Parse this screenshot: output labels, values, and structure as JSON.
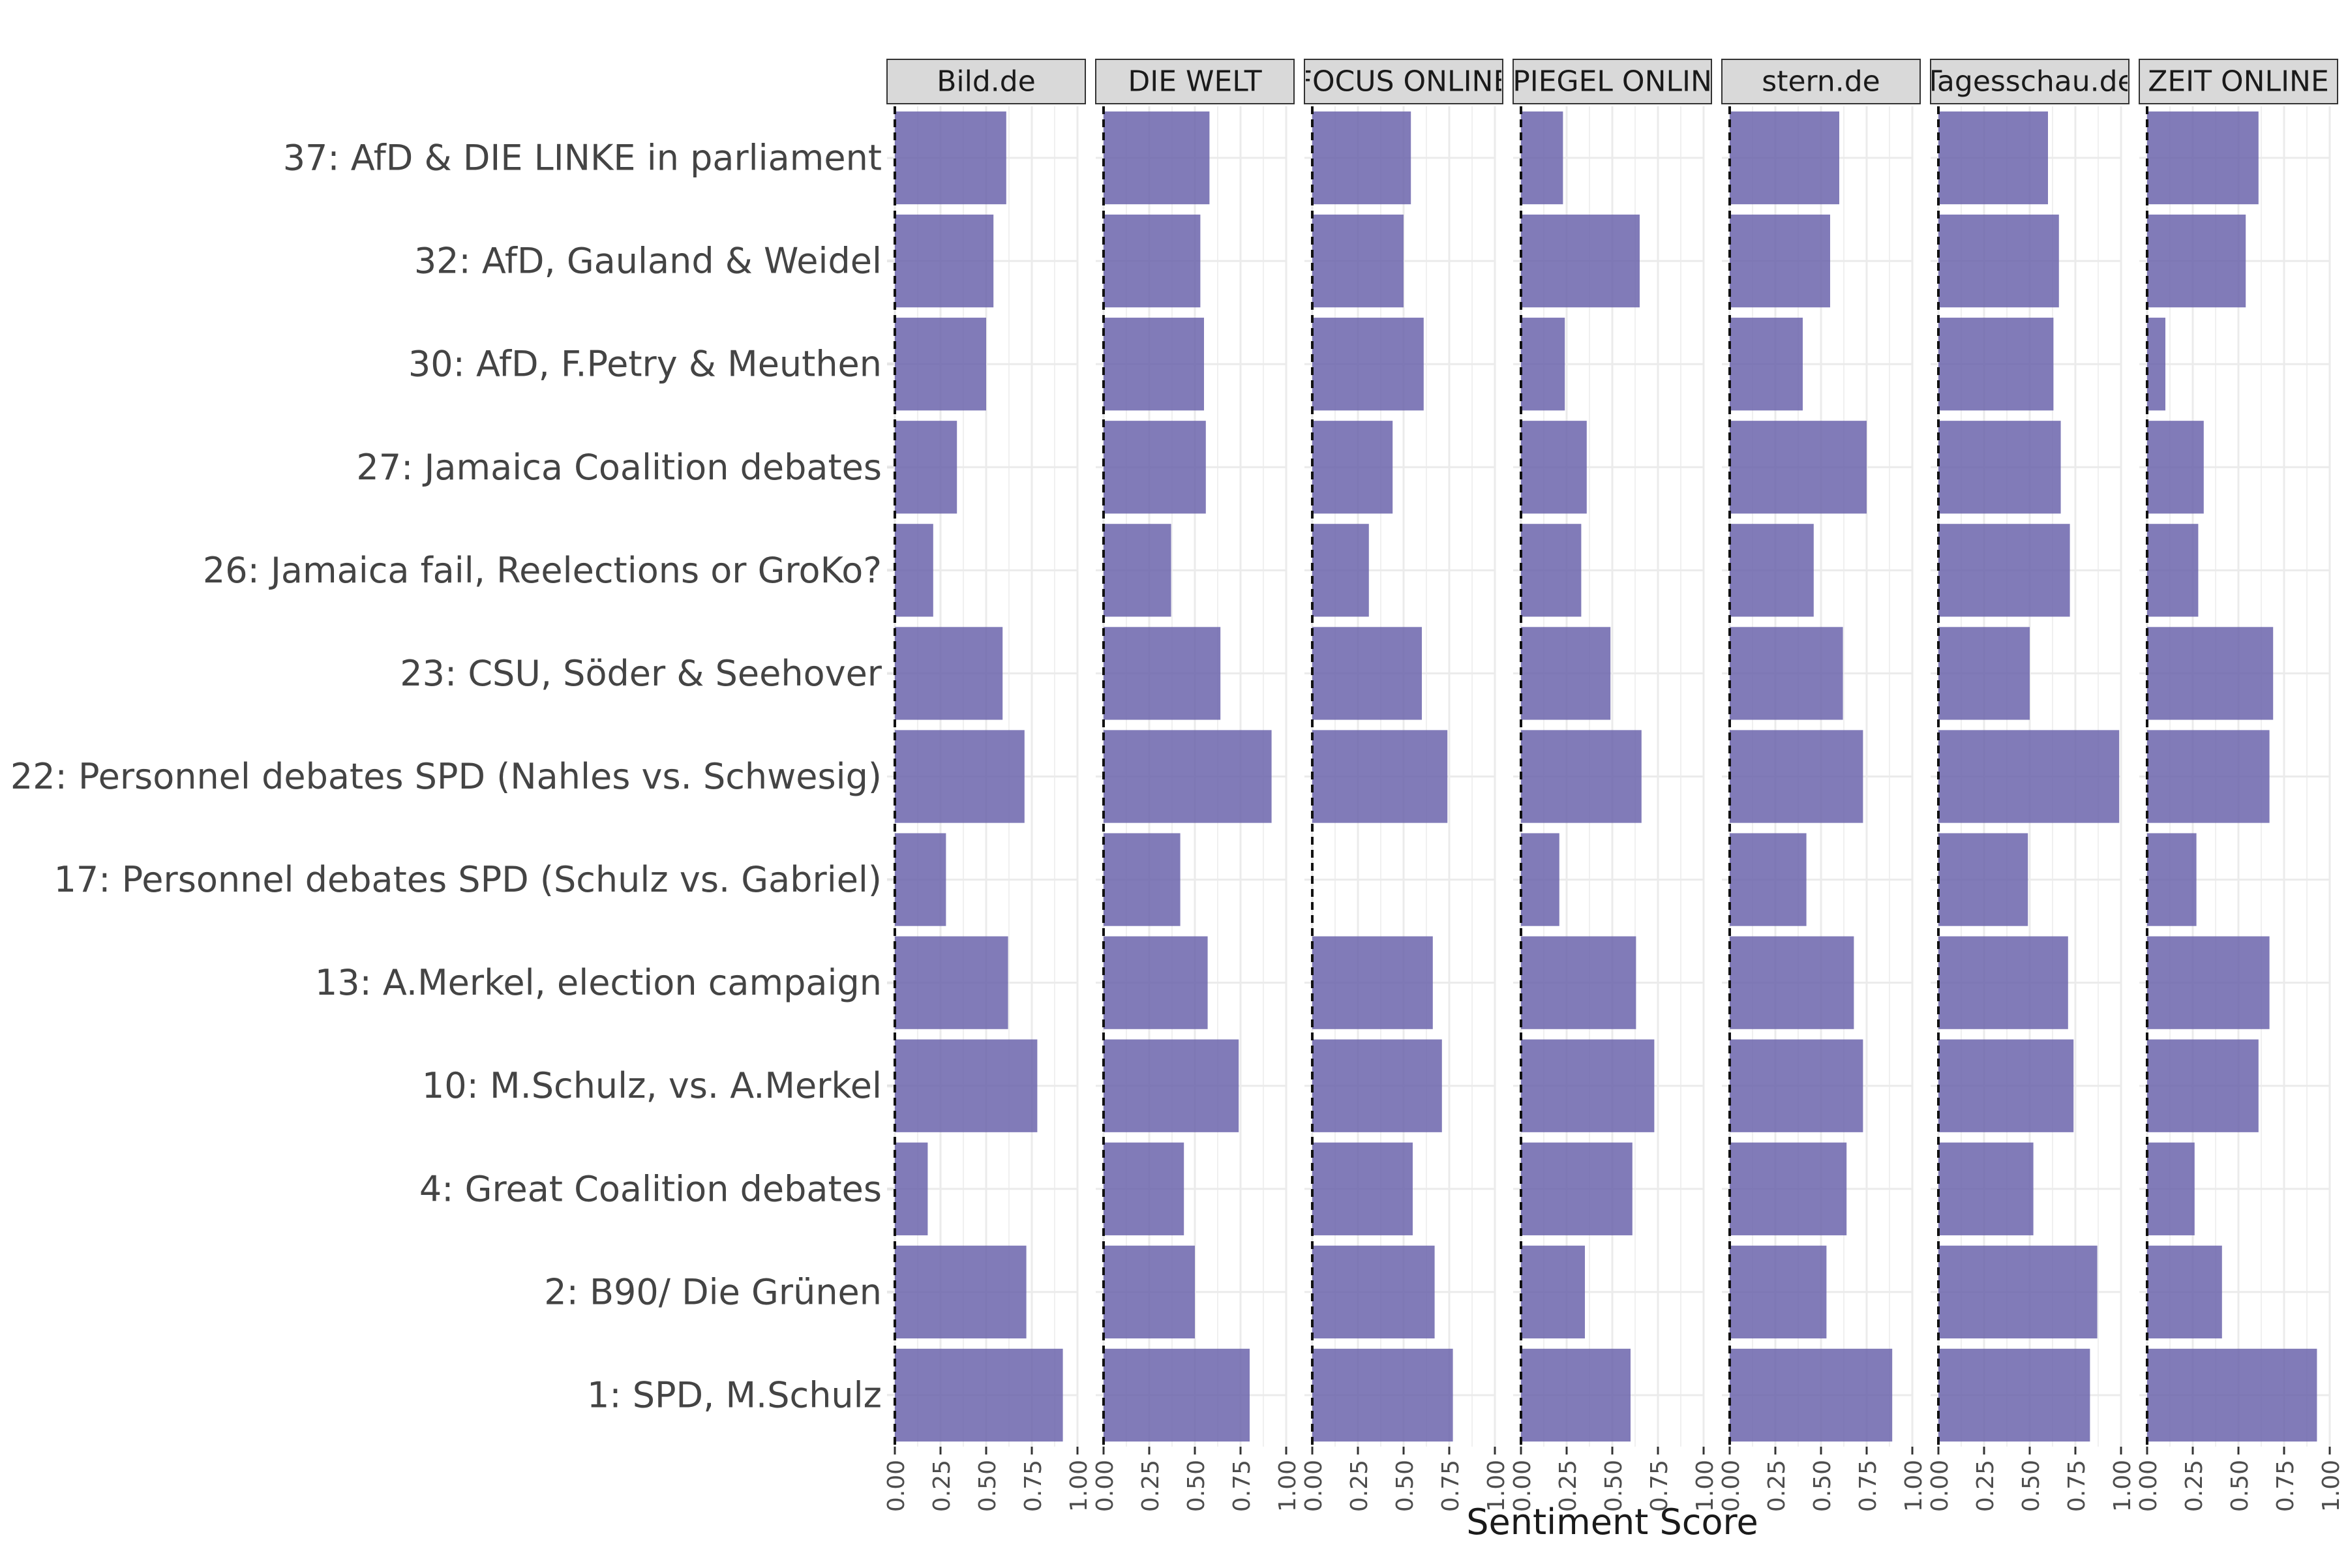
{
  "chart_data": {
    "type": "bar",
    "orientation": "horizontal",
    "faceted_by": "outlet",
    "xlabel": "Sentiment Score",
    "ylabel": "",
    "xlim": [
      0,
      1
    ],
    "x_ticks": [
      "0.00",
      "0.25",
      "0.50",
      "0.75",
      "1.00"
    ],
    "grid": true,
    "legend": "none",
    "bar_color": "#6b64ac",
    "panels": [
      "Bild.de",
      "DIE WELT",
      "FOCUS ONLINE",
      "SPIEGEL ONLINE",
      "stern.de",
      "Tagesschau.de",
      "ZEIT ONLINE"
    ],
    "categories": [
      "37: AfD & DIE LINKE in parliament",
      "32: AfD, Gauland & Weidel",
      "30: AfD, F.Petry & Meuthen",
      "27: Jamaica Coalition debates",
      "26: Jamaica fail, Reelections or GroKo?",
      "23: CSU, Söder & Seehover",
      "22: Personnel debates SPD (Nahles vs. Schwesig)",
      "17: Personnel debates SPD (Schulz vs. Gabriel)",
      "13: A.Merkel, election campaign",
      "10: M.Schulz, vs. A.Merkel",
      "4: Great Coalition debates",
      "2: B90/ Die Grünen",
      "1: SPD, M.Schulz"
    ],
    "series": [
      {
        "name": "Bild.de",
        "values": [
          0.61,
          0.54,
          0.5,
          0.34,
          0.21,
          0.59,
          0.71,
          0.28,
          0.62,
          0.78,
          0.18,
          0.72,
          0.92
        ]
      },
      {
        "name": "DIE WELT",
        "values": [
          0.58,
          0.53,
          0.55,
          0.56,
          0.37,
          0.64,
          0.92,
          0.42,
          0.57,
          0.74,
          0.44,
          0.5,
          0.8
        ]
      },
      {
        "name": "FOCUS ONLINE",
        "values": [
          0.54,
          0.5,
          0.61,
          0.44,
          0.31,
          0.6,
          0.74,
          null,
          0.66,
          0.71,
          0.55,
          0.67,
          0.77
        ]
      },
      {
        "name": "SPIEGEL ONLINE",
        "values": [
          0.23,
          0.65,
          0.24,
          0.36,
          0.33,
          0.49,
          0.66,
          0.21,
          0.63,
          0.73,
          0.61,
          0.35,
          0.6
        ]
      },
      {
        "name": "stern.de",
        "values": [
          0.6,
          0.55,
          0.4,
          0.75,
          0.46,
          0.62,
          0.73,
          0.42,
          0.68,
          0.73,
          0.64,
          0.53,
          0.89
        ]
      },
      {
        "name": "Tagesschau.de",
        "values": [
          0.6,
          0.66,
          0.63,
          0.67,
          0.72,
          0.5,
          0.99,
          0.49,
          0.71,
          0.74,
          0.52,
          0.87,
          0.83
        ]
      },
      {
        "name": "ZEIT ONLINE",
        "values": [
          0.61,
          0.54,
          0.1,
          0.31,
          0.28,
          0.69,
          0.67,
          0.27,
          0.67,
          0.61,
          0.26,
          0.41,
          0.93
        ]
      }
    ]
  }
}
